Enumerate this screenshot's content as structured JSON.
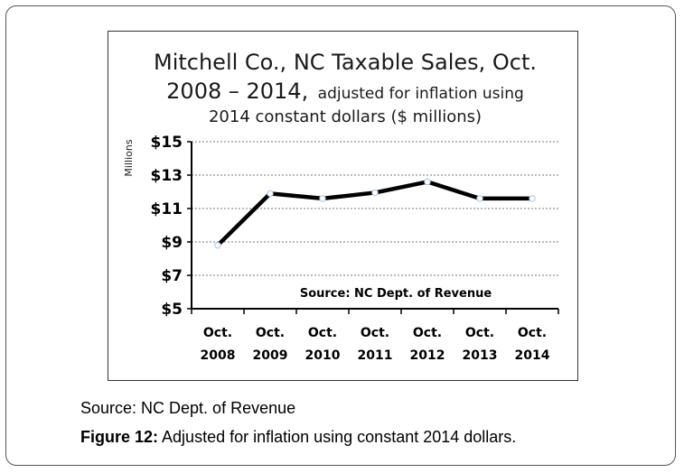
{
  "chart_data": {
    "type": "line",
    "title_line1": "Mitchell Co., NC Taxable Sales, Oct.",
    "title_line2_main": "2008 – 2014,",
    "title_line2_sub": "adjusted for inflation using",
    "title_line3": "2014 constant dollars ($ millions)",
    "ylabel": "Millions",
    "ylim": [
      5,
      15
    ],
    "y_ticks": [
      5,
      7,
      9,
      11,
      13,
      15
    ],
    "y_tick_labels": [
      "$5",
      "$7",
      "$9",
      "$11",
      "$13",
      "$15"
    ],
    "categories": [
      {
        "top": "Oct.",
        "bottom": "2008"
      },
      {
        "top": "Oct.",
        "bottom": "2009"
      },
      {
        "top": "Oct.",
        "bottom": "2010"
      },
      {
        "top": "Oct.",
        "bottom": "2011"
      },
      {
        "top": "Oct.",
        "bottom": "2012"
      },
      {
        "top": "Oct.",
        "bottom": "2013"
      },
      {
        "top": "Oct.",
        "bottom": "2014"
      }
    ],
    "values": [
      8.8,
      11.9,
      11.6,
      11.95,
      12.6,
      11.6,
      11.6
    ],
    "annotation": "Source: NC Dept. of Revenue",
    "grid": true,
    "line_color": "#000000",
    "marker_fill": "#ffffff",
    "marker_stroke": "#a9c4e6"
  },
  "caption": {
    "source": "Source: NC Dept. of Revenue",
    "figure_label": "Figure 12:",
    "figure_text": " Adjusted for inflation using constant 2014 dollars."
  }
}
